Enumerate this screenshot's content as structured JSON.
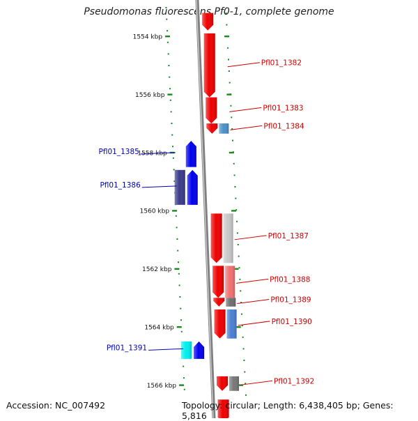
{
  "title": "Pseudomonas fluorescens Pf0-1, complete genome",
  "footer": {
    "accession": "Accession: NC_007492",
    "summary": "Topology: circular; Length: 6,438,405 bp; Genes: 5,816"
  },
  "colors": {
    "forward_label": "#cc0000",
    "reverse_label": "#0000bb",
    "tick": "#1a8a1a",
    "backbone": "#808080"
  },
  "ticks": [
    {
      "label": "1554 kbp",
      "kbp": 1554
    },
    {
      "label": "1556 kbp",
      "kbp": 1556
    },
    {
      "label": "1558 kbp",
      "kbp": 1558
    },
    {
      "label": "1560 kbp",
      "kbp": 1560
    },
    {
      "label": "1562 kbp",
      "kbp": 1562
    },
    {
      "label": "1564 kbp",
      "kbp": 1564
    },
    {
      "label": "1566 kbp",
      "kbp": 1566
    }
  ],
  "genes": [
    {
      "label": "",
      "strand": "+",
      "start_kbp": 1553.2,
      "end_kbp": 1553.8,
      "color": "#ee0000"
    },
    {
      "label": "Pfl01_1382",
      "strand": "+",
      "start_kbp": 1553.9,
      "end_kbp": 1556.1,
      "color": "#ee0000"
    },
    {
      "label": "Pfl01_1383",
      "strand": "+",
      "start_kbp": 1556.1,
      "end_kbp": 1557.0,
      "color": "#ee0000"
    },
    {
      "label": "Pfl01_1384",
      "strand": "+",
      "start_kbp": 1557.0,
      "end_kbp": 1557.35,
      "color": "#ee0000",
      "partner_color": "#4a90c8"
    },
    {
      "label": "Pfl01_1385",
      "strand": "-",
      "start_kbp": 1557.6,
      "end_kbp": 1558.5,
      "color": "#0000ee"
    },
    {
      "label": "Pfl01_1386",
      "strand": "-",
      "start_kbp": 1558.6,
      "end_kbp": 1559.8,
      "color": "#0000ee",
      "partner_color": "#3a3a8a"
    },
    {
      "label": "Pfl01_1387",
      "strand": "+",
      "start_kbp": 1560.1,
      "end_kbp": 1561.8,
      "color": "#ee0000",
      "partner_color": "#c8c8c8"
    },
    {
      "label": "Pfl01_1388",
      "strand": "+",
      "start_kbp": 1561.9,
      "end_kbp": 1563.0,
      "color": "#ee0000",
      "partner_color": "#f07070"
    },
    {
      "label": "Pfl01_1389",
      "strand": "+",
      "start_kbp": 1563.0,
      "end_kbp": 1563.3,
      "color": "#ee0000",
      "partner_color": "#707070"
    },
    {
      "label": "Pfl01_1390",
      "strand": "+",
      "start_kbp": 1563.4,
      "end_kbp": 1564.4,
      "color": "#ee0000",
      "partner_color": "#4a7fd0"
    },
    {
      "label": "Pfl01_1391",
      "strand": "-",
      "start_kbp": 1564.5,
      "end_kbp": 1565.1,
      "color": "#0000ee",
      "partner_color": "#00eeee"
    },
    {
      "label": "Pfl01_1392",
      "strand": "+",
      "start_kbp": 1565.7,
      "end_kbp": 1566.2,
      "color": "#ee0000",
      "partner_color": "#777777"
    },
    {
      "label": "",
      "strand": "+",
      "start_kbp": 1566.5,
      "end_kbp": 1567.3,
      "color": "#ee0000"
    }
  ]
}
